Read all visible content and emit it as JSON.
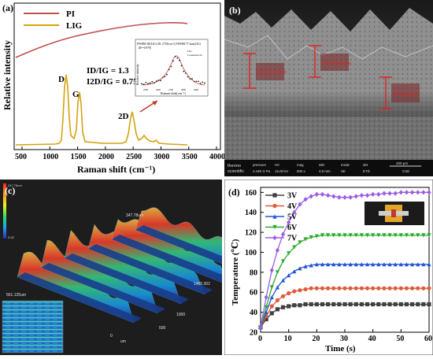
{
  "panel_a": {
    "label": "(a)",
    "legend": [
      {
        "name": "PI",
        "color": "#c0504d"
      },
      {
        "name": "LIG",
        "color": "#d4a20f"
      }
    ],
    "ratios": [
      "ID/IG = 1.3",
      "I2D/IG = 0.75"
    ],
    "peak_labels": [
      "D",
      "G",
      "2D"
    ],
    "ylabel": "Relative intensity",
    "xlabel": "Raman shift (cm⁻¹)",
    "xticks": [
      "500",
      "1000",
      "1500",
      "2000",
      "2500",
      "3000",
      "3500",
      "4000"
    ],
    "inset": {
      "header": "FWHM 2D(LIG) 2D: 2719(cm-1) FWHM 77 data(LIG)",
      "r2": "(R²=0.979)",
      "legend": [
        "LIG",
        "Lorentzian fit"
      ],
      "ylabel": "Relative intensity",
      "xlabel": "Raman shift(cm⁻¹)",
      "xticks": [
        "2500",
        "2600",
        "2700",
        "2800",
        "2900"
      ]
    }
  },
  "panel_b": {
    "label": "(b)",
    "annotations": [
      "LIG 61.44 μm",
      "LIG 48.04 μm",
      "PI 60.81 μm"
    ],
    "footer": {
      "brand": [
        "thermo",
        "scientific"
      ],
      "fields": [
        {
          "k": "pressure",
          "v": "2.44E-3 Pa"
        },
        {
          "k": "HV",
          "v": "15.00 kV"
        },
        {
          "k": "mag",
          "v": "500 x"
        },
        {
          "k": "WD",
          "v": "4.9 mm"
        },
        {
          "k": "mode",
          "v": "SE"
        },
        {
          "k": "det",
          "v": "ETD"
        }
      ],
      "scale": "200 μm",
      "scale_sub": "CSE"
    }
  },
  "panel_c": {
    "label": "(c)",
    "colorbar_top": "347.78um",
    "colorbar_bottom": "0.00",
    "peak_label": "347.78um",
    "left_label": "561.125um",
    "right_label": "1455.302",
    "axis_labels": [
      "1000",
      "500",
      "500",
      "0",
      "um"
    ]
  },
  "panel_d": {
    "label": "(d)",
    "chart_data": {
      "type": "line",
      "xlabel": "Time (s)",
      "ylabel": "Temperature (℃)",
      "xlim": [
        0,
        60
      ],
      "ylim": [
        20,
        165
      ],
      "xticks": [
        0,
        10,
        20,
        30,
        40,
        50,
        60
      ],
      "yticks": [
        20,
        40,
        60,
        80,
        100,
        120,
        140,
        160
      ],
      "x": [
        0,
        2,
        4,
        6,
        8,
        10,
        12,
        14,
        16,
        18,
        20,
        22,
        24,
        26,
        28,
        30,
        32,
        34,
        36,
        38,
        40,
        42,
        44,
        46,
        48,
        50,
        52,
        54,
        56,
        58,
        60
      ],
      "series": [
        {
          "name": "3V",
          "color": "#404040",
          "marker": "square",
          "values": [
            25,
            33,
            39,
            43,
            45,
            46,
            47,
            47,
            48,
            48,
            48,
            48,
            48,
            48,
            48,
            48,
            48,
            48,
            48,
            48,
            48,
            48,
            48,
            48,
            48,
            48,
            48,
            48,
            48,
            48,
            48
          ]
        },
        {
          "name": "4V",
          "color": "#e05b3a",
          "marker": "circle",
          "values": [
            25,
            36,
            46,
            52,
            56,
            59,
            61,
            62,
            63,
            64,
            64,
            64,
            64,
            64,
            64,
            64,
            64,
            64,
            64,
            64,
            64,
            64,
            64,
            64,
            64,
            64,
            64,
            64,
            64,
            64,
            64
          ]
        },
        {
          "name": "5V",
          "color": "#2255d8",
          "marker": "triangle",
          "values": [
            25,
            40,
            55,
            65,
            72,
            77,
            81,
            84,
            86,
            87,
            88,
            88,
            88,
            88,
            88,
            88,
            88,
            88,
            88,
            88,
            88,
            88,
            88,
            88,
            88,
            88,
            88,
            88,
            88,
            88,
            88
          ]
        },
        {
          "name": "6V",
          "color": "#2eaa2e",
          "marker": "triangle-down",
          "values": [
            25,
            45,
            65,
            80,
            91,
            99,
            105,
            110,
            113,
            115,
            116,
            117,
            117,
            117,
            117,
            117,
            117,
            117,
            117,
            117,
            117,
            117,
            117,
            117,
            117,
            117,
            117,
            117,
            117,
            117,
            117
          ]
        },
        {
          "name": "7V",
          "color": "#9b5de5",
          "marker": "diamond",
          "values": [
            25,
            55,
            82,
            102,
            118,
            130,
            140,
            148,
            153,
            156,
            158,
            158,
            157,
            156,
            155,
            155,
            155,
            156,
            157,
            157,
            158,
            158,
            159,
            159,
            159,
            160,
            160,
            160,
            160,
            160,
            160
          ]
        }
      ]
    }
  }
}
